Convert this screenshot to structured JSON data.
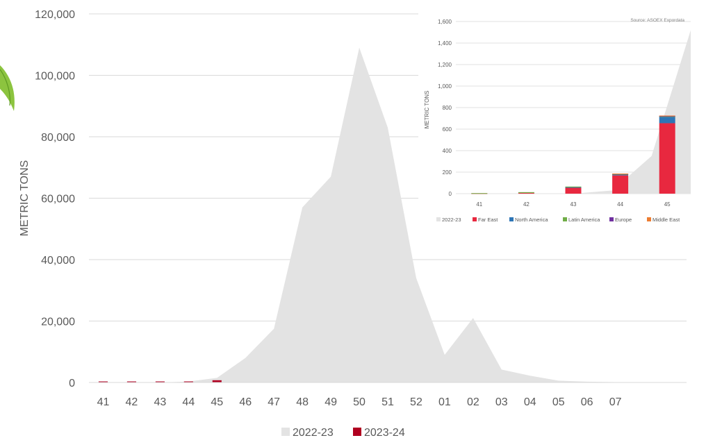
{
  "chart_data": [
    {
      "type": "area",
      "title": "",
      "xlabel": "",
      "ylabel": "METRIC TONS",
      "ylim": [
        0,
        120000
      ],
      "yticks": [
        "0",
        "20,000",
        "40,000",
        "60,000",
        "80,000",
        "100,000",
        "120,000"
      ],
      "yticks_values": [
        0,
        20000,
        40000,
        60000,
        80000,
        100000,
        120000
      ],
      "grid": true,
      "legend": "bottom",
      "categories": [
        "41",
        "42",
        "43",
        "44",
        "45",
        "46",
        "47",
        "48",
        "49",
        "50",
        "51",
        "52",
        "01",
        "02",
        "03",
        "04",
        "05",
        "06",
        "07",
        "",
        ""
      ],
      "series": [
        {
          "name": "2022-23",
          "type": "area",
          "color": "#e3e3e3",
          "values": [
            0,
            0,
            0,
            300,
            1500,
            8000,
            17500,
            57000,
            67000,
            109000,
            83000,
            34000,
            9000,
            21000,
            4200,
            2200,
            600,
            250,
            100,
            0,
            0
          ]
        },
        {
          "name": "2023-24",
          "type": "bar",
          "color": "#b00020",
          "values": [
            0,
            20,
            60,
            190,
            720,
            null,
            null,
            null,
            null,
            null,
            null,
            null,
            null,
            null,
            null,
            null,
            null,
            null,
            null,
            null,
            null
          ]
        }
      ]
    },
    {
      "type": "bar",
      "title": "",
      "xlabel": "",
      "ylabel": "METRIC TONS",
      "source": "Source: ASOEX Expordata",
      "ylim": [
        0,
        1600
      ],
      "yticks": [
        "0",
        "200",
        "400",
        "600",
        "800",
        "1,000",
        "1,200",
        "1,400",
        "1,600"
      ],
      "yticks_values": [
        0,
        200,
        400,
        600,
        800,
        1000,
        1200,
        1400,
        1600
      ],
      "grid": true,
      "legend": "bottom",
      "categories": [
        "41",
        "42",
        "43",
        "44",
        "45"
      ],
      "area": {
        "name": "2022-23",
        "color": "#e3e3e3",
        "values": [
          0,
          0,
          0,
          0,
          30,
          350,
          1520
        ]
      },
      "series": [
        {
          "name": "Far East",
          "color": "#e8283f",
          "values": [
            4,
            6,
            58,
            170,
            655
          ]
        },
        {
          "name": "North America",
          "color": "#2e75b6",
          "values": [
            0,
            0,
            3,
            8,
            60
          ]
        },
        {
          "name": "Latin America",
          "color": "#70ad47",
          "values": [
            1,
            8,
            5,
            4,
            5
          ]
        },
        {
          "name": "Europe",
          "color": "#7030a0",
          "values": [
            0,
            0,
            0,
            3,
            3
          ]
        },
        {
          "name": "Middle East",
          "color": "#ed7d31",
          "values": [
            0,
            0,
            0,
            2,
            3
          ]
        }
      ]
    }
  ]
}
